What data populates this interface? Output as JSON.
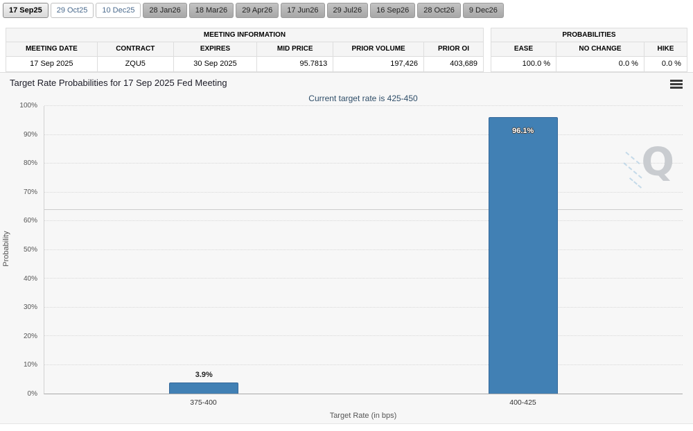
{
  "selected_tab": "17 Sep25",
  "tabs": [
    {
      "label": "17 Sep25"
    },
    {
      "label": "29 Oct25"
    },
    {
      "label": "10 Dec25"
    },
    {
      "label": "28 Jan26"
    },
    {
      "label": "18 Mar26"
    },
    {
      "label": "29 Apr26"
    },
    {
      "label": "17 Jun26"
    },
    {
      "label": "29 Jul26"
    },
    {
      "label": "16 Sep26"
    },
    {
      "label": "28 Oct26"
    },
    {
      "label": "9 Dec26"
    }
  ],
  "meeting_info": {
    "title": "MEETING INFORMATION",
    "columns": [
      "MEETING DATE",
      "CONTRACT",
      "EXPIRES",
      "MID PRICE",
      "PRIOR VOLUME",
      "PRIOR OI"
    ],
    "values": [
      "17 Sep 2025",
      "ZQU5",
      "30 Sep 2025",
      "95.7813",
      "197,426",
      "403,689"
    ]
  },
  "probabilities": {
    "title": "PROBABILITIES",
    "columns": [
      "EASE",
      "NO CHANGE",
      "HIKE"
    ],
    "values": [
      "100.0 %",
      "0.0 %",
      "0.0 %"
    ]
  },
  "chart_data": {
    "type": "bar",
    "title": "Target Rate Probabilities for 17 Sep 2025 Fed Meeting",
    "subtitle": "Current target rate is 425-450",
    "categories": [
      "375-400",
      "400-425"
    ],
    "values": [
      3.9,
      96.1
    ],
    "value_labels": [
      "3.9%",
      "96.1%"
    ],
    "label_inside": [
      false,
      true
    ],
    "xlabel": "Target Rate (in bps)",
    "ylabel": "Probability",
    "ylim": [
      0,
      100
    ],
    "yticks": [
      "0%",
      "10%",
      "20%",
      "30%",
      "40%",
      "50%",
      "60%",
      "70%",
      "80%",
      "90%",
      "100%"
    ],
    "grid": "dotted-horizontal",
    "legend": "none",
    "bar_color": "#4180b4",
    "bar_border_color": "#35689a",
    "reference_line_percent": 63.8,
    "watermark_text": "Q",
    "menu_icon": "hamburger-icon"
  }
}
